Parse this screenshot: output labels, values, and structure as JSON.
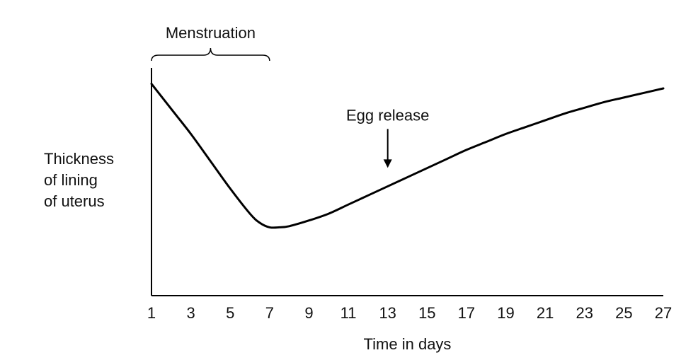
{
  "chart_data": {
    "type": "line",
    "title": "",
    "xlabel": "Time in days",
    "ylabel_lines": [
      "Thickness",
      "of lining",
      "of uterus"
    ],
    "xlim": [
      1,
      27
    ],
    "ylim": [
      0,
      100
    ],
    "xticks": [
      "1",
      "3",
      "5",
      "7",
      "9",
      "11",
      "13",
      "15",
      "17",
      "19",
      "21",
      "23",
      "25",
      "27"
    ],
    "yticks": [],
    "grid": false,
    "legend": "none",
    "series": [
      {
        "x": [
          1,
          2,
          3,
          4,
          5,
          6,
          6.5,
          7,
          7.5,
          8,
          9,
          10,
          11,
          12,
          13,
          14,
          15,
          16,
          17,
          18,
          19,
          20,
          21,
          22,
          23,
          24,
          25,
          26,
          27
        ],
        "y": [
          93,
          82,
          71,
          59,
          47,
          36,
          32,
          30,
          30,
          30.5,
          33,
          36,
          40,
          44,
          48,
          52,
          56,
          60,
          64,
          67.5,
          71,
          74,
          77,
          80,
          82.5,
          85,
          87,
          89,
          91
        ],
        "color": "#000000"
      }
    ],
    "annotations": [
      {
        "text": "Menstruation",
        "type": "brace",
        "x_start": 1,
        "x_end": 7
      },
      {
        "text": "Egg release",
        "type": "arrow",
        "x": 13,
        "y": 53
      }
    ]
  }
}
